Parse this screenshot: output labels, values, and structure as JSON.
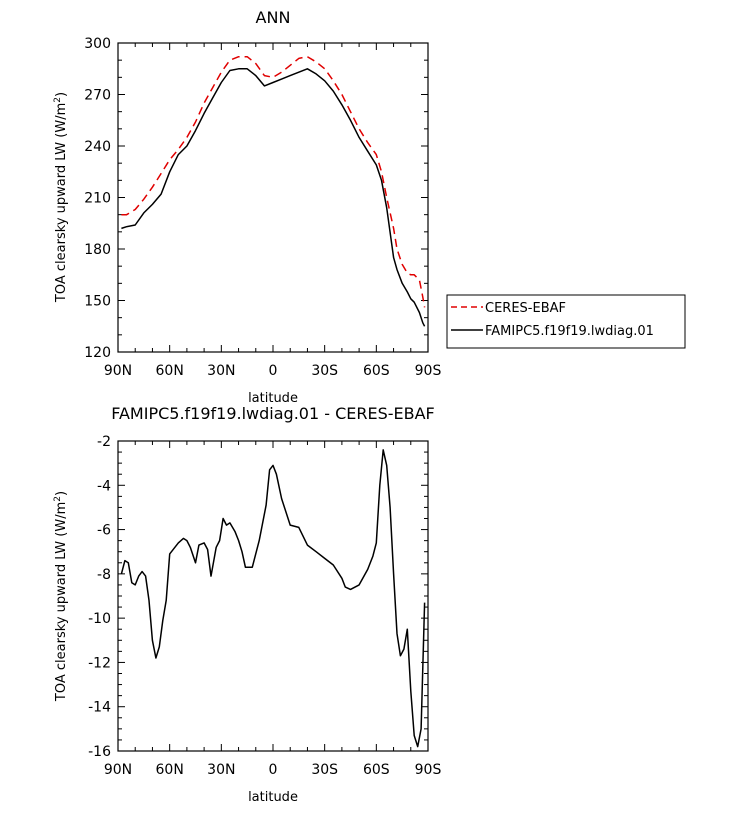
{
  "chart_data": [
    {
      "type": "line",
      "title": "ANN",
      "xlabel": "latitude",
      "ylabel": "TOA clearsky upward LW (W/m2)",
      "ylabel_text": "TOA clearsky upward LW (W/m",
      "ylabel_sup": "2",
      "ylabel_close": ")",
      "xlim": [
        90,
        -90
      ],
      "ylim": [
        120,
        300
      ],
      "x_ticks": [
        90,
        60,
        30,
        0,
        -30,
        -60,
        -90
      ],
      "x_tick_labels": [
        "90N",
        "60N",
        "30N",
        "0",
        "30S",
        "60S",
        "90S"
      ],
      "y_ticks": [
        120,
        150,
        180,
        210,
        240,
        270,
        300
      ],
      "y_tick_labels": [
        "120",
        "150",
        "180",
        "210",
        "240",
        "270",
        "300"
      ],
      "legend": [
        "CERES-EBAF",
        "FAMIPC5.f19f19.lwdiag.01"
      ],
      "series": [
        {
          "name": "CERES-EBAF",
          "color": "#e00000",
          "dash": "dashed",
          "x": [
            88,
            85,
            80,
            75,
            70,
            65,
            60,
            55,
            50,
            45,
            40,
            35,
            30,
            25,
            20,
            15,
            10,
            5,
            0,
            -5,
            -10,
            -15,
            -20,
            -25,
            -30,
            -35,
            -40,
            -45,
            -50,
            -55,
            -60,
            -63,
            -66,
            -70,
            -72,
            -75,
            -78,
            -80,
            -82,
            -85,
            -87,
            -88
          ],
          "values": [
            200,
            200,
            203,
            209,
            216,
            224,
            232,
            238,
            245,
            254,
            265,
            274,
            283,
            290,
            292,
            292,
            288,
            281,
            280,
            283,
            287,
            291,
            292,
            289,
            285,
            278,
            270,
            260,
            250,
            242,
            235,
            225,
            210,
            192,
            180,
            171,
            166,
            165,
            165,
            162,
            152,
            146
          ]
        },
        {
          "name": "FAMIPC5.f19f19.lwdiag.01",
          "color": "#000000",
          "dash": "solid",
          "x": [
            88,
            85,
            80,
            75,
            70,
            65,
            60,
            55,
            50,
            45,
            40,
            35,
            30,
            25,
            20,
            15,
            10,
            5,
            0,
            -5,
            -10,
            -15,
            -20,
            -25,
            -30,
            -35,
            -40,
            -45,
            -50,
            -55,
            -60,
            -63,
            -66,
            -70,
            -72,
            -75,
            -78,
            -80,
            -82,
            -85,
            -87,
            -88
          ],
          "values": [
            192,
            193,
            194,
            201,
            206,
            212,
            225,
            235,
            240,
            249,
            259,
            268,
            277,
            284,
            285,
            285,
            281,
            275,
            277,
            279,
            281,
            283,
            285,
            282,
            278,
            272,
            264,
            255,
            245,
            237,
            229,
            220,
            204,
            175,
            168,
            160,
            155,
            151,
            149,
            143,
            137,
            135
          ]
        }
      ]
    },
    {
      "type": "line",
      "title": "FAMIPC5.f19f19.lwdiag.01 - CERES-EBAF",
      "xlabel": "latitude",
      "ylabel": "TOA clearsky upward LW (W/m2)",
      "ylabel_text": "TOA clearsky upward LW (W/m",
      "ylabel_sup": "2",
      "ylabel_close": ")",
      "xlim": [
        90,
        -90
      ],
      "ylim": [
        -16,
        -2
      ],
      "x_ticks": [
        90,
        60,
        30,
        0,
        -30,
        -60,
        -90
      ],
      "x_tick_labels": [
        "90N",
        "60N",
        "30N",
        "0",
        "30S",
        "60S",
        "90S"
      ],
      "y_ticks": [
        -16,
        -14,
        -12,
        -10,
        -8,
        -6,
        -4,
        -2
      ],
      "y_tick_labels": [
        "-16",
        "-14",
        "-12",
        "-10",
        "-8",
        "-6",
        "-4",
        "-2"
      ],
      "series": [
        {
          "color": "#000000",
          "dash": "solid",
          "x": [
            88,
            86,
            84,
            82,
            80,
            78,
            76,
            74,
            72,
            70,
            68,
            66,
            64,
            62,
            60,
            55,
            52,
            50,
            48,
            45,
            43,
            40,
            38,
            36,
            33,
            31,
            29,
            27,
            25,
            22,
            20,
            18,
            16,
            12,
            8,
            4,
            2,
            0,
            -2,
            -5,
            -10,
            -15,
            -20,
            -25,
            -30,
            -35,
            -40,
            -42,
            -45,
            -50,
            -55,
            -58,
            -60,
            -62,
            -64,
            -66,
            -68,
            -70,
            -72,
            -74,
            -76,
            -78,
            -80,
            -82,
            -84,
            -86,
            -88
          ],
          "values": [
            -8.0,
            -7.4,
            -7.5,
            -8.4,
            -8.5,
            -8.1,
            -7.9,
            -8.1,
            -9.2,
            -11.0,
            -11.8,
            -11.3,
            -10.1,
            -9.2,
            -7.1,
            -6.6,
            -6.4,
            -6.5,
            -6.8,
            -7.5,
            -6.7,
            -6.6,
            -6.9,
            -8.1,
            -6.8,
            -6.5,
            -5.5,
            -5.8,
            -5.7,
            -6.1,
            -6.5,
            -7.0,
            -7.7,
            -7.7,
            -6.5,
            -4.9,
            -3.3,
            -3.1,
            -3.5,
            -4.6,
            -5.8,
            -5.9,
            -6.7,
            -7.0,
            -7.3,
            -7.6,
            -8.2,
            -8.6,
            -8.7,
            -8.5,
            -7.8,
            -7.2,
            -6.6,
            -4.0,
            -2.4,
            -3.1,
            -5.0,
            -8.0,
            -10.7,
            -11.7,
            -11.4,
            -10.5,
            -13.3,
            -15.3,
            -15.8,
            -15.0,
            -9.3
          ]
        }
      ]
    }
  ]
}
